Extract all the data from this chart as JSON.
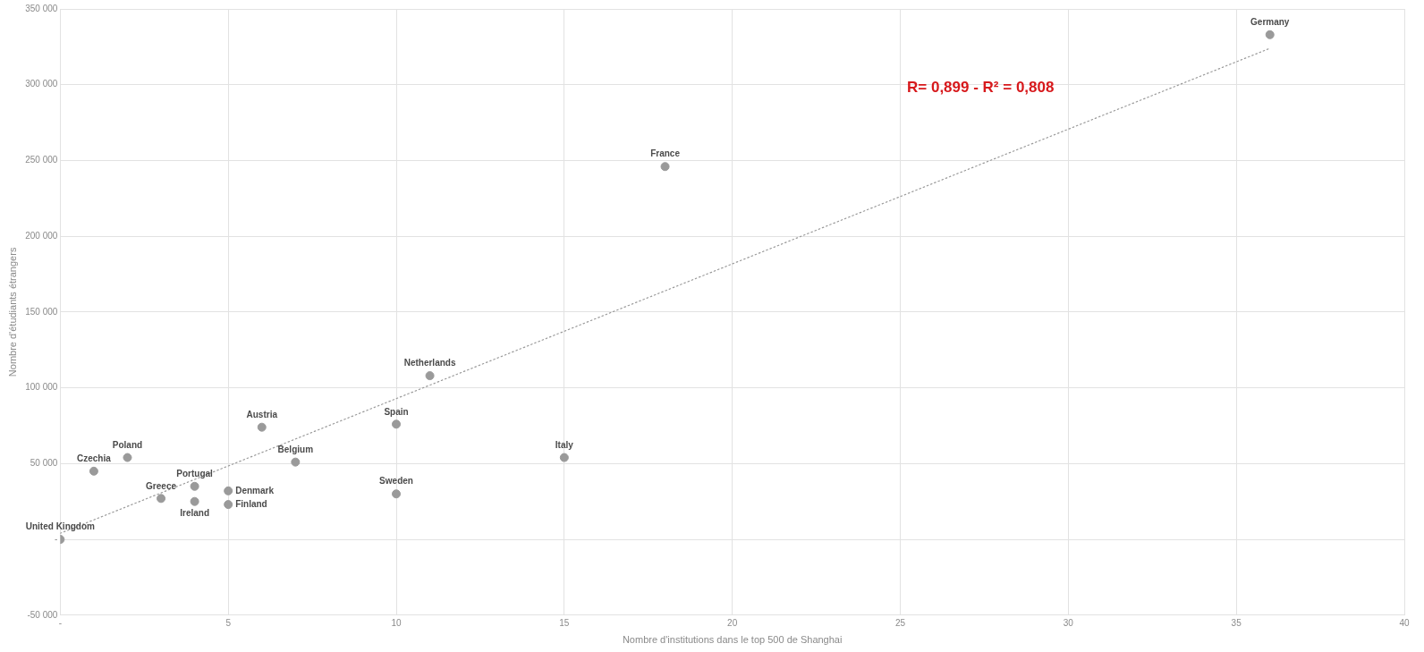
{
  "chart_data": {
    "type": "scatter",
    "xlabel": "Nombre d'institutions dans le top 500 de Shanghai",
    "ylabel": "Nombre d'étudiants étrangers",
    "annotations": [
      "R= 0,899 - R² = 0,808"
    ],
    "xlim": [
      0,
      40
    ],
    "xticks": [
      {
        "value": 0,
        "label": "-"
      },
      5,
      10,
      15,
      20,
      25,
      30,
      35,
      40
    ],
    "ylim": [
      -50000,
      350000
    ],
    "yticks": [
      {
        "value": -50000,
        "label": "-50 000"
      },
      {
        "value": 0,
        "label": "-"
      },
      {
        "value": 50000,
        "label": "50 000"
      },
      {
        "value": 100000,
        "label": "100 000"
      },
      {
        "value": 150000,
        "label": "150 000"
      },
      {
        "value": 200000,
        "label": "200 000"
      },
      {
        "value": 250000,
        "label": "250 000"
      },
      {
        "value": 300000,
        "label": "300 000"
      },
      {
        "value": 350000,
        "label": "350 000"
      }
    ],
    "grid": true,
    "legend": false,
    "marker": "circle",
    "series": [
      {
        "type": "line",
        "color": "#9a9a9a",
        "x": [
          0,
          36
        ],
        "values": [
          4000,
          324000
        ],
        "line_style": "dotted",
        "marker": "none"
      },
      {
        "name": "Germany",
        "color": "#9a9a9a",
        "x": [
          36
        ],
        "values": [
          333000
        ]
      },
      {
        "name": "France",
        "color": "#9a9a9a",
        "x": [
          18
        ],
        "values": [
          246000
        ]
      },
      {
        "name": "Netherlands",
        "color": "#9a9a9a",
        "x": [
          11
        ],
        "values": [
          108000
        ]
      },
      {
        "name": "Spain",
        "color": "#9a9a9a",
        "x": [
          10
        ],
        "values": [
          76000
        ]
      },
      {
        "name": "Austria",
        "color": "#9a9a9a",
        "x": [
          6
        ],
        "values": [
          74000
        ]
      },
      {
        "name": "Italy",
        "color": "#9a9a9a",
        "x": [
          15
        ],
        "values": [
          54000
        ]
      },
      {
        "name": "Belgium",
        "color": "#9a9a9a",
        "x": [
          7
        ],
        "values": [
          51000
        ]
      },
      {
        "name": "Poland",
        "color": "#9a9a9a",
        "x": [
          2
        ],
        "values": [
          54000
        ]
      },
      {
        "name": "Czechia",
        "color": "#9a9a9a",
        "x": [
          1
        ],
        "values": [
          45000
        ]
      },
      {
        "name": "Sweden",
        "color": "#9a9a9a",
        "x": [
          10
        ],
        "values": [
          30000
        ]
      },
      {
        "name": "Portugal",
        "color": "#9a9a9a",
        "x": [
          4
        ],
        "values": [
          35000
        ]
      },
      {
        "name": "Denmark",
        "color": "#9a9a9a",
        "x": [
          5
        ],
        "values": [
          32000
        ]
      },
      {
        "name": "Greece",
        "color": "#9a9a9a",
        "x": [
          3
        ],
        "values": [
          27000
        ]
      },
      {
        "name": "Ireland",
        "color": "#9a9a9a",
        "x": [
          4
        ],
        "values": [
          25000
        ]
      },
      {
        "name": "Finland",
        "color": "#9a9a9a",
        "x": [
          5
        ],
        "values": [
          23000
        ]
      },
      {
        "name": "United Kingdom",
        "color": "#9a9a9a",
        "x": [
          0
        ],
        "values": [
          0
        ]
      }
    ]
  }
}
